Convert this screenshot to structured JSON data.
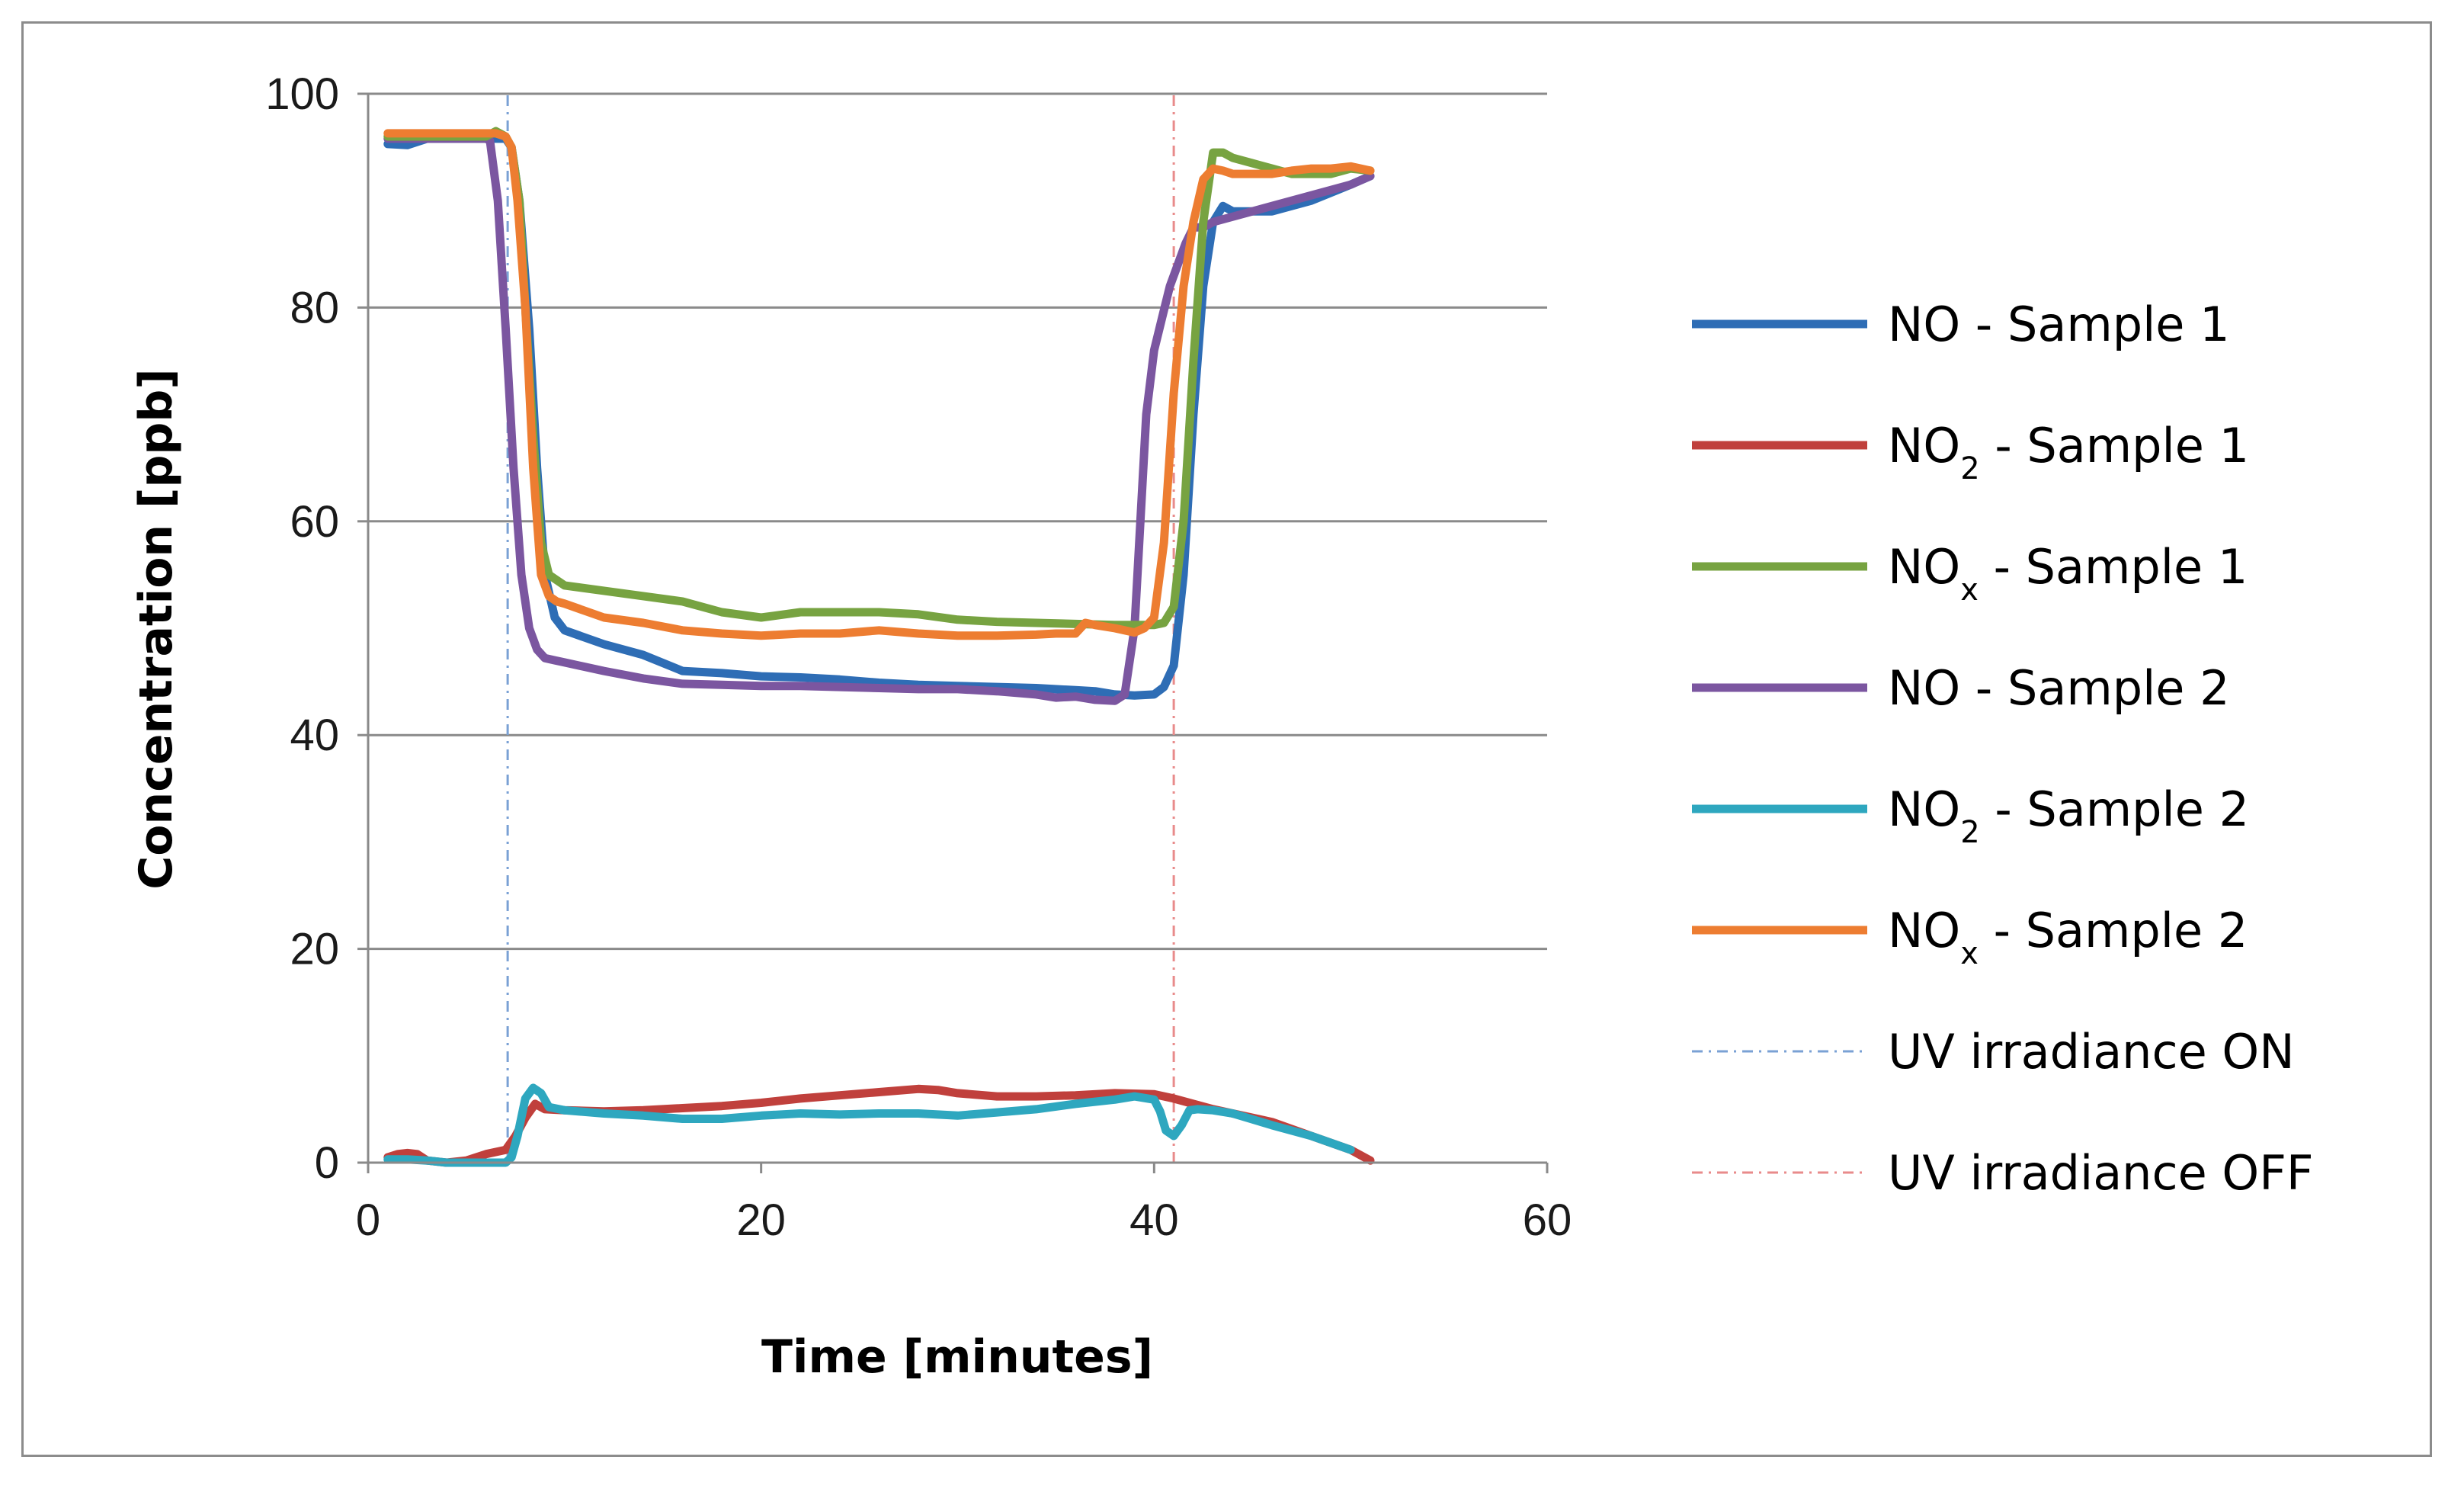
{
  "chart_data": {
    "type": "line",
    "title": "",
    "xlabel": "Time [minutes]",
    "ylabel": "Concentration  [ppb]",
    "xlim": [
      0,
      60
    ],
    "ylim": [
      0,
      100
    ],
    "xticks": [
      0,
      20,
      40,
      60
    ],
    "yticks": [
      0,
      20,
      40,
      60,
      80,
      100
    ],
    "grid": "horizontal",
    "legend": "right",
    "series": [
      {
        "name": "NO - Sample 1",
        "label_main": "NO",
        "label_sub": "",
        "label_rest": " - Sample 1",
        "color": "#2e6db5",
        "x": [
          1,
          2,
          3,
          4,
          5,
          6,
          7,
          7.3,
          7.7,
          8.2,
          8.6,
          9,
          9.5,
          10,
          12,
          14,
          16,
          18,
          20,
          22,
          24,
          26,
          28,
          30,
          32,
          34,
          36,
          37,
          38,
          39,
          40,
          40.5,
          41,
          41.5,
          42,
          42.5,
          43,
          43.5,
          44,
          46,
          48,
          50,
          51
        ],
        "y": [
          95.3,
          95.2,
          95.8,
          95.8,
          95.8,
          95.8,
          95.8,
          95,
          90,
          78,
          65,
          55,
          51,
          49.8,
          48.5,
          47.5,
          46,
          45.8,
          45.5,
          45.4,
          45.2,
          44.9,
          44.7,
          44.6,
          44.5,
          44.4,
          44.2,
          44.1,
          43.8,
          43.7,
          43.8,
          44.5,
          46.5,
          55,
          70,
          82,
          88,
          89.5,
          89,
          89,
          90,
          91.5,
          92.3
        ]
      },
      {
        "name": "NO2 - Sample 1",
        "label_main": "NO",
        "label_sub": "2",
        "label_rest": "  - Sample 1",
        "color": "#c0403c",
        "x": [
          1,
          1.5,
          2,
          2.5,
          3,
          4,
          5,
          6,
          7,
          7.5,
          8,
          8.5,
          9,
          10,
          12,
          14,
          16,
          18,
          20,
          22,
          24,
          26,
          28,
          29,
          30,
          32,
          34,
          36,
          38,
          40,
          41,
          42,
          43,
          44,
          46,
          48,
          50,
          51
        ],
        "y": [
          0.5,
          0.8,
          0.9,
          0.8,
          0.2,
          0,
          0.2,
          0.8,
          1.2,
          2.5,
          4.2,
          5.5,
          5,
          4.9,
          4.8,
          4.9,
          5.1,
          5.3,
          5.6,
          6,
          6.3,
          6.6,
          6.9,
          6.8,
          6.5,
          6.2,
          6.2,
          6.3,
          6.5,
          6.4,
          6,
          5.5,
          5,
          4.6,
          3.8,
          2.5,
          1.2,
          0.2
        ]
      },
      {
        "name": "NOx - Sample 1",
        "label_main": "NO",
        "label_sub": "x",
        "label_rest": "  - Sample 1",
        "color": "#77a341",
        "x": [
          1,
          2,
          3,
          4,
          5,
          6,
          6.5,
          7,
          7.3,
          7.7,
          8,
          8.4,
          8.8,
          9.2,
          9.6,
          10,
          12,
          14,
          16,
          18,
          20,
          22,
          24,
          26,
          28,
          30,
          32,
          34,
          36,
          38,
          40,
          40.5,
          41,
          41.5,
          42,
          42.5,
          43,
          43.5,
          44,
          45,
          46,
          47,
          48,
          49,
          50,
          51
        ],
        "y": [
          96,
          96,
          96,
          96,
          96,
          96,
          96.5,
          96,
          95,
          90,
          80,
          68,
          58,
          55,
          54.5,
          54,
          53.5,
          53,
          52.5,
          51.5,
          51,
          51.5,
          51.5,
          51.5,
          51.3,
          50.8,
          50.6,
          50.5,
          50.4,
          50.3,
          50.3,
          50.5,
          52,
          60,
          75,
          88,
          94.5,
          94.5,
          94,
          93.5,
          93,
          92.5,
          92.5,
          92.5,
          93,
          92.8
        ]
      },
      {
        "name": "NO - Sample 2",
        "label_main": "NO",
        "label_sub": "",
        "label_rest": " - Sample 2",
        "color": "#7b56a0",
        "x": [
          1,
          2,
          3,
          4,
          5,
          6,
          6.2,
          6.6,
          7,
          7.4,
          7.8,
          8.2,
          8.6,
          9,
          9.5,
          10,
          12,
          14,
          16,
          18,
          20,
          22,
          24,
          26,
          28,
          30,
          32,
          34,
          35,
          36,
          37,
          38,
          38.5,
          39,
          39.3,
          39.6,
          40,
          40.4,
          40.8,
          41.2,
          41.6,
          42,
          42.5,
          43,
          44,
          45,
          46,
          47,
          48,
          49,
          50,
          51
        ],
        "y": [
          95.8,
          95.8,
          95.8,
          95.8,
          95.8,
          95.8,
          95.6,
          90,
          78,
          65,
          55,
          50,
          48,
          47.2,
          47,
          46.8,
          46,
          45.3,
          44.8,
          44.7,
          44.6,
          44.6,
          44.5,
          44.4,
          44.3,
          44.3,
          44.1,
          43.8,
          43.5,
          43.6,
          43.3,
          43.2,
          43.8,
          50,
          60,
          70,
          76,
          79,
          82,
          84,
          86,
          87.5,
          87.5,
          88,
          88.5,
          89,
          89.5,
          90,
          90.5,
          91,
          91.5,
          92.3
        ]
      },
      {
        "name": "NO2 - Sample 2",
        "label_main": "NO",
        "label_sub": "2",
        "label_rest": "  - Sample 2",
        "color": "#2ea7bf",
        "x": [
          1,
          2,
          3,
          4,
          5,
          6,
          7,
          7.3,
          7.6,
          8,
          8.4,
          8.8,
          9.2,
          10,
          12,
          14,
          16,
          18,
          20,
          22,
          24,
          26,
          28,
          30,
          32,
          34,
          36,
          38,
          39,
          40,
          40.3,
          40.6,
          41,
          41.4,
          41.8,
          42.2,
          43,
          44,
          46,
          48,
          50
        ],
        "y": [
          0.3,
          0.3,
          0.2,
          0,
          0,
          0,
          0,
          0.5,
          2.5,
          6,
          7,
          6.5,
          5.2,
          4.9,
          4.6,
          4.4,
          4.1,
          4.1,
          4.4,
          4.6,
          4.5,
          4.6,
          4.6,
          4.4,
          4.7,
          5,
          5.5,
          5.9,
          6.2,
          5.9,
          4.8,
          3,
          2.5,
          3.5,
          4.9,
          5,
          4.9,
          4.6,
          3.5,
          2.5,
          1.2
        ]
      },
      {
        "name": "NOx - Sample 2",
        "label_main": "NO",
        "label_sub": "x",
        "label_rest": "  - Sample 2",
        "color": "#ed7d31",
        "x": [
          1,
          2,
          3,
          4,
          5,
          6,
          6.5,
          7,
          7.3,
          7.6,
          8,
          8.4,
          8.8,
          9.2,
          9.6,
          10,
          12,
          14,
          16,
          18,
          20,
          22,
          24,
          26,
          28,
          30,
          32,
          34,
          35,
          36,
          36.5,
          37,
          38,
          39,
          39.5,
          40,
          40.5,
          41,
          41.5,
          42,
          42.5,
          43,
          43.5,
          44,
          45,
          46,
          47,
          48,
          49,
          50,
          51
        ],
        "y": [
          96.3,
          96.3,
          96.3,
          96.3,
          96.3,
          96.3,
          96.3,
          96,
          95,
          90,
          80,
          65,
          55,
          53,
          52.5,
          52.3,
          51,
          50.5,
          49.8,
          49.5,
          49.3,
          49.5,
          49.5,
          49.8,
          49.5,
          49.3,
          49.3,
          49.4,
          49.5,
          49.5,
          50.5,
          50.3,
          50,
          49.6,
          50,
          51,
          58,
          72,
          82,
          88,
          92,
          93,
          92.8,
          92.5,
          92.5,
          92.5,
          92.8,
          93,
          93,
          93.2,
          92.8
        ]
      },
      {
        "name": "UV irradiance ON",
        "label_main": "UV irradiance ON",
        "label_sub": "",
        "label_rest": "",
        "color": "#7aa1d4",
        "dashed": true,
        "x": [
          7.1,
          7.1
        ],
        "y": [
          0,
          100
        ]
      },
      {
        "name": "UV irradiance OFF",
        "label_main": "UV irradiance OFF",
        "label_sub": "",
        "label_rest": "",
        "color": "#e88b8b",
        "dashed": true,
        "x": [
          41,
          41
        ],
        "y": [
          0,
          100
        ]
      }
    ]
  }
}
